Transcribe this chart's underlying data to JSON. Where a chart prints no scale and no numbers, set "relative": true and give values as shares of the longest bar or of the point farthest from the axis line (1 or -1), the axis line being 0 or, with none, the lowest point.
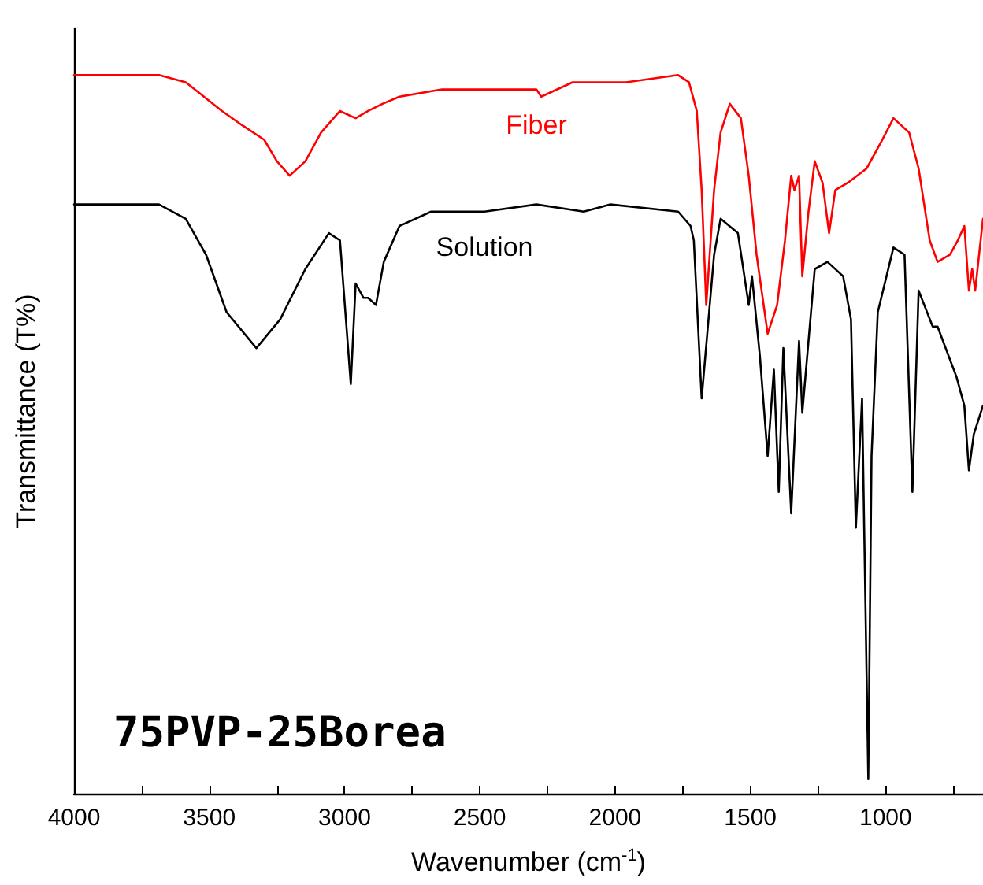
{
  "chart_data": {
    "type": "line",
    "relative": true,
    "xlabel": "Wavenumber (cm$^{-1}$)",
    "ylabel": "Transmittance (T%)",
    "annotations": [
      "75PVP-25Borea"
    ],
    "xlim": [
      4000,
      640
    ],
    "xticks": [
      4000,
      {
        "value": 3750,
        "label": null
      },
      3500,
      {
        "value": 3250,
        "label": null
      },
      3000,
      {
        "value": 2750,
        "label": null
      },
      2500,
      {
        "value": 2250,
        "label": null
      },
      2000,
      {
        "value": 1750,
        "label": null
      },
      1500,
      {
        "value": 1250,
        "label": null
      },
      1000,
      {
        "value": 750,
        "label": null
      }
    ],
    "tick_labels": "x",
    "grid": false,
    "legend": false,
    "marker": "none",
    "line_style": "solid",
    "series": [
      {
        "name": "Fiber",
        "color": "#ff0000",
        "x": [
          4000,
          3860,
          3686,
          3587,
          3453,
          3378,
          3297,
          3250,
          3203,
          3145,
          3087,
          3017,
          2959,
          2913,
          2860,
          2797,
          2640,
          2483,
          2291,
          2273,
          2157,
          1959,
          1767,
          1727,
          1698,
          1680,
          1663,
          1634,
          1610,
          1576,
          1535,
          1506,
          1477,
          1436,
          1401,
          1372,
          1349,
          1337,
          1320,
          1308,
          1285,
          1262,
          1233,
          1209,
          1186,
          1140,
          1070,
          1012,
          971,
          913,
          878,
          837,
          808,
          762,
          733,
          709,
          692,
          680,
          669,
          640
        ],
        "values": [
          1.0,
          1.0,
          1.0,
          0.99,
          0.95,
          0.93,
          0.91,
          0.88,
          0.86,
          0.88,
          0.92,
          0.95,
          0.94,
          0.95,
          0.96,
          0.97,
          0.98,
          0.98,
          0.98,
          0.97,
          0.99,
          0.99,
          1.0,
          0.99,
          0.95,
          0.84,
          0.68,
          0.84,
          0.92,
          0.96,
          0.94,
          0.86,
          0.75,
          0.64,
          0.68,
          0.77,
          0.86,
          0.84,
          0.86,
          0.72,
          0.81,
          0.88,
          0.85,
          0.78,
          0.84,
          0.85,
          0.87,
          0.91,
          0.94,
          0.92,
          0.87,
          0.77,
          0.74,
          0.75,
          0.77,
          0.79,
          0.7,
          0.73,
          0.7,
          0.8
        ]
      },
      {
        "name": "Solution",
        "color": "#000000",
        "x": [
          4000,
          3686,
          3587,
          3512,
          3436,
          3326,
          3238,
          3145,
          3058,
          3017,
          2977,
          2959,
          2930,
          2913,
          2884,
          2855,
          2797,
          2680,
          2483,
          2291,
          2116,
          2017,
          1767,
          1721,
          1709,
          1680,
          1634,
          1610,
          1546,
          1506,
          1494,
          1465,
          1436,
          1413,
          1395,
          1378,
          1349,
          1320,
          1308,
          1262,
          1215,
          1157,
          1128,
          1110,
          1087,
          1064,
          1052,
          1029,
          971,
          930,
          901,
          878,
          826,
          808,
          738,
          709,
          692,
          674,
          640
        ],
        "values": [
          0.82,
          0.82,
          0.8,
          0.75,
          0.67,
          0.62,
          0.66,
          0.73,
          0.78,
          0.77,
          0.57,
          0.71,
          0.69,
          0.69,
          0.68,
          0.74,
          0.79,
          0.81,
          0.81,
          0.82,
          0.81,
          0.82,
          0.81,
          0.79,
          0.77,
          0.55,
          0.75,
          0.8,
          0.78,
          0.68,
          0.72,
          0.61,
          0.47,
          0.59,
          0.42,
          0.62,
          0.39,
          0.63,
          0.53,
          0.73,
          0.74,
          0.72,
          0.66,
          0.37,
          0.55,
          0.02,
          0.47,
          0.67,
          0.76,
          0.75,
          0.42,
          0.7,
          0.65,
          0.65,
          0.58,
          0.54,
          0.45,
          0.5,
          0.54
        ]
      }
    ]
  }
}
